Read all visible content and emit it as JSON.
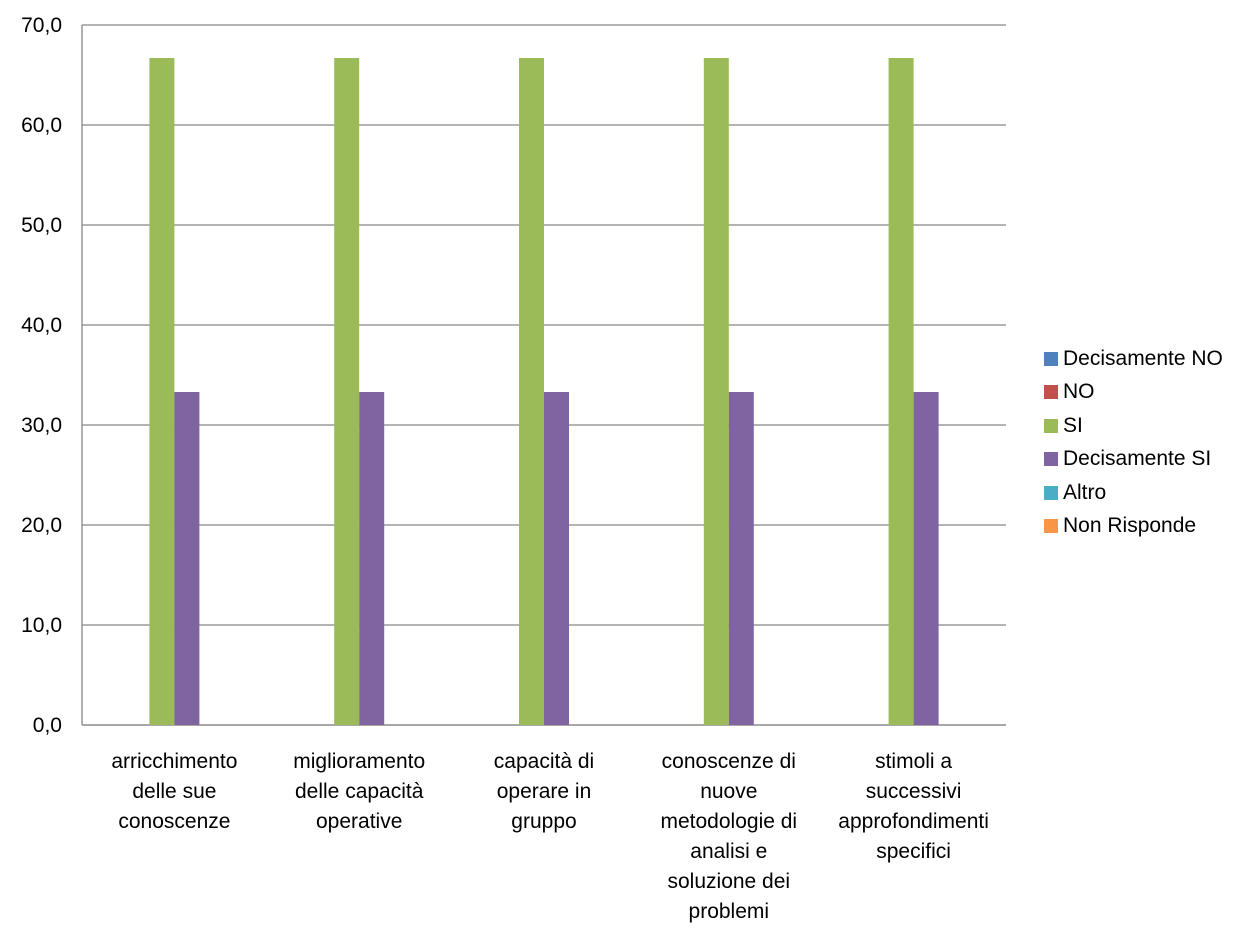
{
  "chart_data": {
    "type": "bar",
    "categories": [
      [
        "arricchimento",
        "delle sue",
        "conoscenze"
      ],
      [
        "miglioramento",
        "delle capacità",
        "operative"
      ],
      [
        "capacità di",
        "operare in",
        "gruppo"
      ],
      [
        "conoscenze di",
        "nuove",
        "metodologie di",
        "analisi e",
        "soluzione dei",
        "problemi"
      ],
      [
        "stimoli a",
        "successivi",
        "approfondimenti",
        "specifici"
      ]
    ],
    "series": [
      {
        "name": "Decisamente NO",
        "color": "#4f81bd",
        "values": [
          0,
          0,
          0,
          0,
          0
        ]
      },
      {
        "name": "NO",
        "color": "#c0504d",
        "values": [
          0,
          0,
          0,
          0,
          0
        ]
      },
      {
        "name": "SI",
        "color": "#9bbb59",
        "values": [
          66.7,
          66.7,
          66.7,
          66.7,
          66.7
        ]
      },
      {
        "name": "Decisamente SI",
        "color": "#8064a2",
        "values": [
          33.3,
          33.3,
          33.3,
          33.3,
          33.3
        ]
      },
      {
        "name": "Altro",
        "color": "#4bacc6",
        "values": [
          0,
          0,
          0,
          0,
          0
        ]
      },
      {
        "name": "Non Risponde",
        "color": "#f79646",
        "values": [
          0,
          0,
          0,
          0,
          0
        ]
      }
    ],
    "ylim": [
      0,
      70
    ],
    "yticks": [
      "0,0",
      "10,0",
      "20,0",
      "30,0",
      "40,0",
      "50,0",
      "60,0",
      "70,0"
    ],
    "grid": true,
    "legend_position": "right"
  }
}
